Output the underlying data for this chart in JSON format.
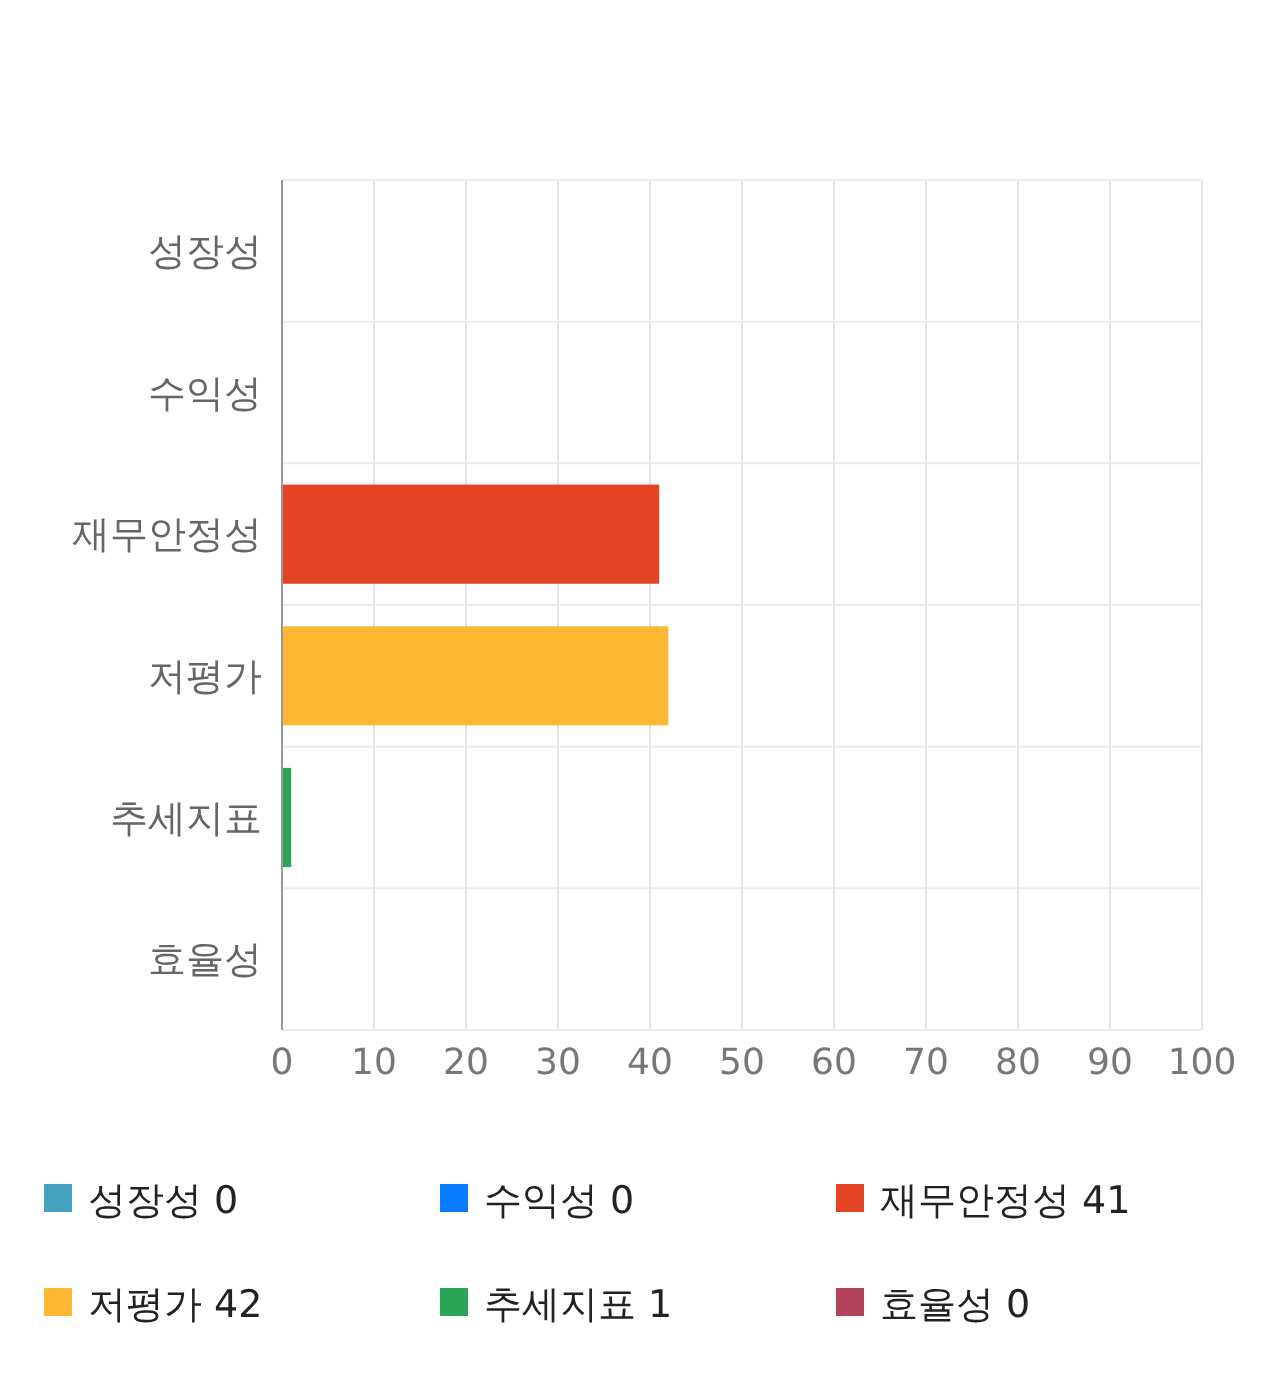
{
  "chart_data": {
    "type": "bar",
    "orientation": "horizontal",
    "categories": [
      "성장성",
      "수익성",
      "재무안정성",
      "저평가",
      "추세지표",
      "효율성"
    ],
    "series": [
      {
        "name": "성장성 0",
        "color": "#44a2bf",
        "values": [
          0,
          null,
          null,
          null,
          null,
          null
        ]
      },
      {
        "name": "수익성 0",
        "color": "#0a7cff",
        "values": [
          null,
          0,
          null,
          null,
          null,
          null
        ]
      },
      {
        "name": "재무안정성 41",
        "color": "#e34424",
        "values": [
          null,
          null,
          41,
          null,
          null,
          null
        ]
      },
      {
        "name": "저평가 42",
        "color": "#ffb833",
        "values": [
          null,
          null,
          null,
          42,
          null,
          null
        ]
      },
      {
        "name": "추세지표 1",
        "color": "#28a655",
        "values": [
          null,
          null,
          null,
          null,
          1,
          null
        ]
      },
      {
        "name": "효율성 0",
        "color": "#b2435a",
        "values": [
          null,
          null,
          null,
          null,
          null,
          0
        ]
      }
    ],
    "xlim": [
      0,
      100
    ],
    "xticks": [
      0,
      10,
      20,
      30,
      40,
      50,
      60,
      70,
      80,
      90,
      100
    ],
    "grid": true,
    "legend": "bottom"
  }
}
